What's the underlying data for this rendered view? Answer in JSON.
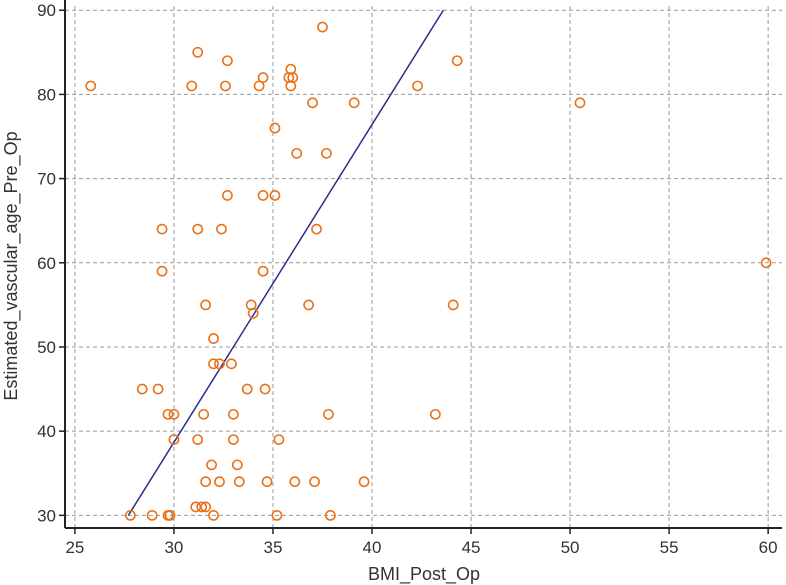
{
  "chart_data": {
    "type": "scatter",
    "title": "",
    "xlabel": "BMI_Post_Op",
    "ylabel": "Estimated_vascular_age_Pre_Op",
    "xlim": [
      24.5,
      60.7
    ],
    "ylim": [
      28.5,
      90.5
    ],
    "xticks": [
      25,
      30,
      35,
      40,
      45,
      50,
      55,
      60
    ],
    "yticks": [
      30,
      40,
      50,
      60,
      70,
      80,
      90
    ],
    "grid": true,
    "point_color": "#E8731A",
    "line_color": "#2B2B8F",
    "fit_line": {
      "x": [
        27.7,
        43.6
      ],
      "y": [
        30,
        90
      ]
    },
    "points": [
      {
        "x": 25.8,
        "y": 81
      },
      {
        "x": 27.8,
        "y": 30
      },
      {
        "x": 28.4,
        "y": 45
      },
      {
        "x": 28.9,
        "y": 30
      },
      {
        "x": 29.2,
        "y": 45
      },
      {
        "x": 29.4,
        "y": 64
      },
      {
        "x": 29.4,
        "y": 59
      },
      {
        "x": 29.7,
        "y": 42
      },
      {
        "x": 29.7,
        "y": 30
      },
      {
        "x": 29.8,
        "y": 30
      },
      {
        "x": 30.0,
        "y": 42
      },
      {
        "x": 30.0,
        "y": 39
      },
      {
        "x": 30.9,
        "y": 81
      },
      {
        "x": 31.1,
        "y": 31
      },
      {
        "x": 31.2,
        "y": 85
      },
      {
        "x": 31.2,
        "y": 64
      },
      {
        "x": 31.2,
        "y": 39
      },
      {
        "x": 31.4,
        "y": 31
      },
      {
        "x": 31.5,
        "y": 42
      },
      {
        "x": 31.6,
        "y": 55
      },
      {
        "x": 31.6,
        "y": 34
      },
      {
        "x": 31.6,
        "y": 31
      },
      {
        "x": 31.9,
        "y": 36
      },
      {
        "x": 32.0,
        "y": 51
      },
      {
        "x": 32.0,
        "y": 48
      },
      {
        "x": 32.0,
        "y": 30
      },
      {
        "x": 32.3,
        "y": 48
      },
      {
        "x": 32.3,
        "y": 34
      },
      {
        "x": 32.4,
        "y": 64
      },
      {
        "x": 32.6,
        "y": 81
      },
      {
        "x": 32.7,
        "y": 84
      },
      {
        "x": 32.7,
        "y": 68
      },
      {
        "x": 32.9,
        "y": 48
      },
      {
        "x": 33.0,
        "y": 42
      },
      {
        "x": 33.0,
        "y": 39
      },
      {
        "x": 33.2,
        "y": 36
      },
      {
        "x": 33.3,
        "y": 34
      },
      {
        "x": 33.7,
        "y": 45
      },
      {
        "x": 33.9,
        "y": 55
      },
      {
        "x": 34.0,
        "y": 54
      },
      {
        "x": 34.3,
        "y": 81
      },
      {
        "x": 34.5,
        "y": 82
      },
      {
        "x": 34.5,
        "y": 68
      },
      {
        "x": 34.5,
        "y": 59
      },
      {
        "x": 34.6,
        "y": 45
      },
      {
        "x": 34.7,
        "y": 34
      },
      {
        "x": 35.1,
        "y": 76
      },
      {
        "x": 35.1,
        "y": 68
      },
      {
        "x": 35.2,
        "y": 30
      },
      {
        "x": 35.3,
        "y": 39
      },
      {
        "x": 35.8,
        "y": 82
      },
      {
        "x": 35.9,
        "y": 83
      },
      {
        "x": 35.9,
        "y": 81
      },
      {
        "x": 36.0,
        "y": 82
      },
      {
        "x": 36.2,
        "y": 73
      },
      {
        "x": 36.1,
        "y": 34
      },
      {
        "x": 36.8,
        "y": 55
      },
      {
        "x": 37.0,
        "y": 79
      },
      {
        "x": 37.1,
        "y": 34
      },
      {
        "x": 37.2,
        "y": 64
      },
      {
        "x": 37.5,
        "y": 88
      },
      {
        "x": 37.7,
        "y": 73
      },
      {
        "x": 37.8,
        "y": 42
      },
      {
        "x": 37.9,
        "y": 30
      },
      {
        "x": 39.1,
        "y": 79
      },
      {
        "x": 39.6,
        "y": 34
      },
      {
        "x": 42.3,
        "y": 81
      },
      {
        "x": 43.2,
        "y": 42
      },
      {
        "x": 44.1,
        "y": 55
      },
      {
        "x": 44.3,
        "y": 84
      },
      {
        "x": 50.5,
        "y": 79
      },
      {
        "x": 59.9,
        "y": 60
      }
    ]
  }
}
